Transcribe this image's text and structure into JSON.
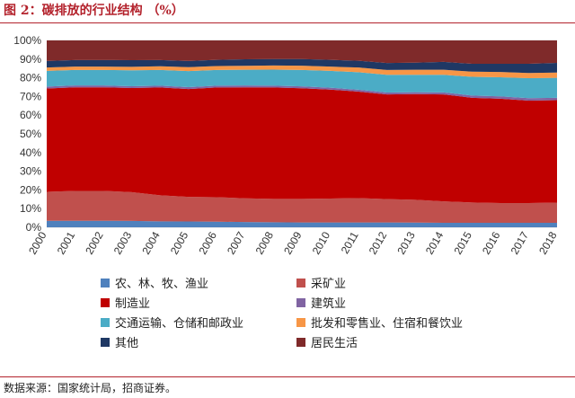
{
  "title": "图 2：碳排放的行业结构 （%）",
  "source": "数据来源：国家统计局，招商证券。",
  "chart_data": {
    "type": "area",
    "stacked": true,
    "normalized": true,
    "x": [
      "2000",
      "2001",
      "2002",
      "2003",
      "2004",
      "2005",
      "2006",
      "2007",
      "2008",
      "2009",
      "2010",
      "2011",
      "2012",
      "2013",
      "2014",
      "2015",
      "2016",
      "2017",
      "2018"
    ],
    "ylim": [
      0,
      100
    ],
    "yticks": [
      "0%",
      "10%",
      "20%",
      "30%",
      "40%",
      "50%",
      "60%",
      "70%",
      "80%",
      "90%",
      "100%"
    ],
    "grid": "horizontal",
    "legend_position": "bottom",
    "series": [
      {
        "name": "农、林、牧、渔业",
        "color": "#4f81bd",
        "values": [
          3.5,
          3.5,
          3.5,
          3.4,
          3.2,
          3.1,
          3.0,
          2.8,
          2.7,
          2.6,
          2.6,
          2.6,
          2.6,
          2.5,
          2.4,
          2.4,
          2.4,
          2.4,
          2.4
        ]
      },
      {
        "name": "采矿业",
        "color": "#c0504d",
        "values": [
          15.5,
          16.0,
          16.0,
          15.4,
          13.9,
          13.2,
          13.1,
          12.7,
          12.5,
          12.6,
          12.8,
          13.0,
          12.5,
          12.2,
          11.5,
          10.9,
          10.6,
          10.6,
          10.8
        ]
      },
      {
        "name": "制造业",
        "color": "#c00000",
        "values": [
          55.3,
          55.4,
          55.4,
          55.7,
          57.7,
          57.7,
          58.7,
          59.4,
          59.6,
          59.2,
          58.3,
          57.0,
          56.0,
          56.6,
          57.2,
          56.0,
          55.8,
          54.8,
          54.8
        ]
      },
      {
        "name": "建筑业",
        "color": "#8064a2",
        "values": [
          1.0,
          1.0,
          1.0,
          1.0,
          1.0,
          1.0,
          1.0,
          1.0,
          1.0,
          1.0,
          1.0,
          1.0,
          1.0,
          1.0,
          1.1,
          1.2,
          1.3,
          1.3,
          1.3
        ]
      },
      {
        "name": "交通运输、仓储和邮政业",
        "color": "#4bacc6",
        "values": [
          8.4,
          8.3,
          8.3,
          8.5,
          8.4,
          8.6,
          8.4,
          8.4,
          8.6,
          8.8,
          9.0,
          9.4,
          9.5,
          9.3,
          9.4,
          10.0,
          10.2,
          10.7,
          10.7
        ]
      },
      {
        "name": "批发和零售业、住宿和餐饮业",
        "color": "#f79646",
        "values": [
          1.8,
          1.8,
          1.8,
          1.9,
          2.0,
          2.1,
          2.1,
          2.1,
          2.2,
          2.3,
          2.3,
          2.5,
          2.6,
          2.7,
          2.7,
          2.8,
          2.8,
          2.8,
          2.8
        ]
      },
      {
        "name": "其他",
        "color": "#1f3864",
        "values": [
          3.5,
          3.5,
          3.5,
          3.5,
          3.3,
          3.3,
          3.3,
          3.5,
          3.4,
          3.5,
          3.6,
          3.6,
          3.7,
          3.8,
          4.2,
          4.2,
          4.4,
          4.9,
          5.2
        ]
      },
      {
        "name": "居民生活",
        "color": "#7f2a2a",
        "values": [
          11.0,
          10.5,
          10.5,
          10.6,
          10.5,
          11.0,
          10.4,
          10.1,
          10.0,
          10.0,
          10.4,
          10.9,
          12.1,
          11.9,
          11.5,
          12.5,
          12.5,
          12.5,
          12.0
        ]
      }
    ]
  }
}
